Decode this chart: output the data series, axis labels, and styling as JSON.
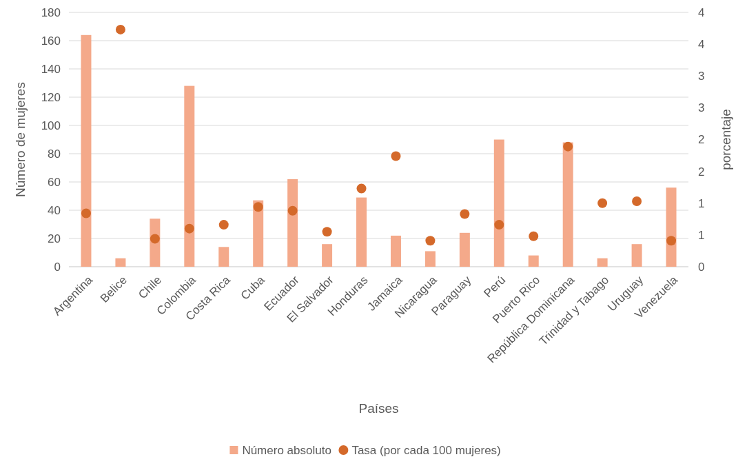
{
  "chart_data": {
    "type": "bar",
    "xlabel": "Países",
    "ylabel": "Número de mujeres",
    "y2label": "porcentaje",
    "categories": [
      "Argentina",
      "Belice",
      "Chile",
      "Colombia",
      "Costa Rica",
      "Cuba",
      "Ecuador",
      "El Salvador",
      "Honduras",
      "Jamaica",
      "Nicaragua",
      "Paraguay",
      "Perú",
      "Puerto Rico",
      "República Dominicana",
      "Trinidad y Tabago",
      "Uruguay",
      "Venezuela"
    ],
    "series": [
      {
        "name": "Número absoluto",
        "color": "#f4a98a",
        "values": [
          164,
          6,
          34,
          128,
          14,
          47,
          62,
          16,
          49,
          22,
          11,
          24,
          90,
          8,
          88,
          6,
          16,
          56
        ]
      },
      {
        "name": "Tasa (por cada 100 mujeres)",
        "type": "scatter",
        "axis": "y2",
        "color": "#d4692a",
        "values": [
          0.84,
          3.73,
          0.44,
          0.6,
          0.66,
          0.94,
          0.88,
          0.55,
          1.23,
          1.74,
          0.41,
          0.83,
          0.66,
          0.48,
          1.89,
          1.0,
          1.03,
          0.41
        ]
      }
    ],
    "ylim": [
      0,
      180
    ],
    "yticks": [
      0,
      20,
      40,
      60,
      80,
      100,
      120,
      140,
      160,
      180
    ],
    "y2lim": [
      0,
      4
    ],
    "y2ticks": [
      0,
      {
        "value": 0.5,
        "label": "1"
      },
      1,
      {
        "value": 1.5,
        "label": "2"
      },
      2,
      {
        "value": 2.5,
        "label": "3"
      },
      3,
      {
        "value": 3.5,
        "label": "4"
      },
      4
    ],
    "grid": "y",
    "legend": "bottom",
    "marker": "circle"
  }
}
